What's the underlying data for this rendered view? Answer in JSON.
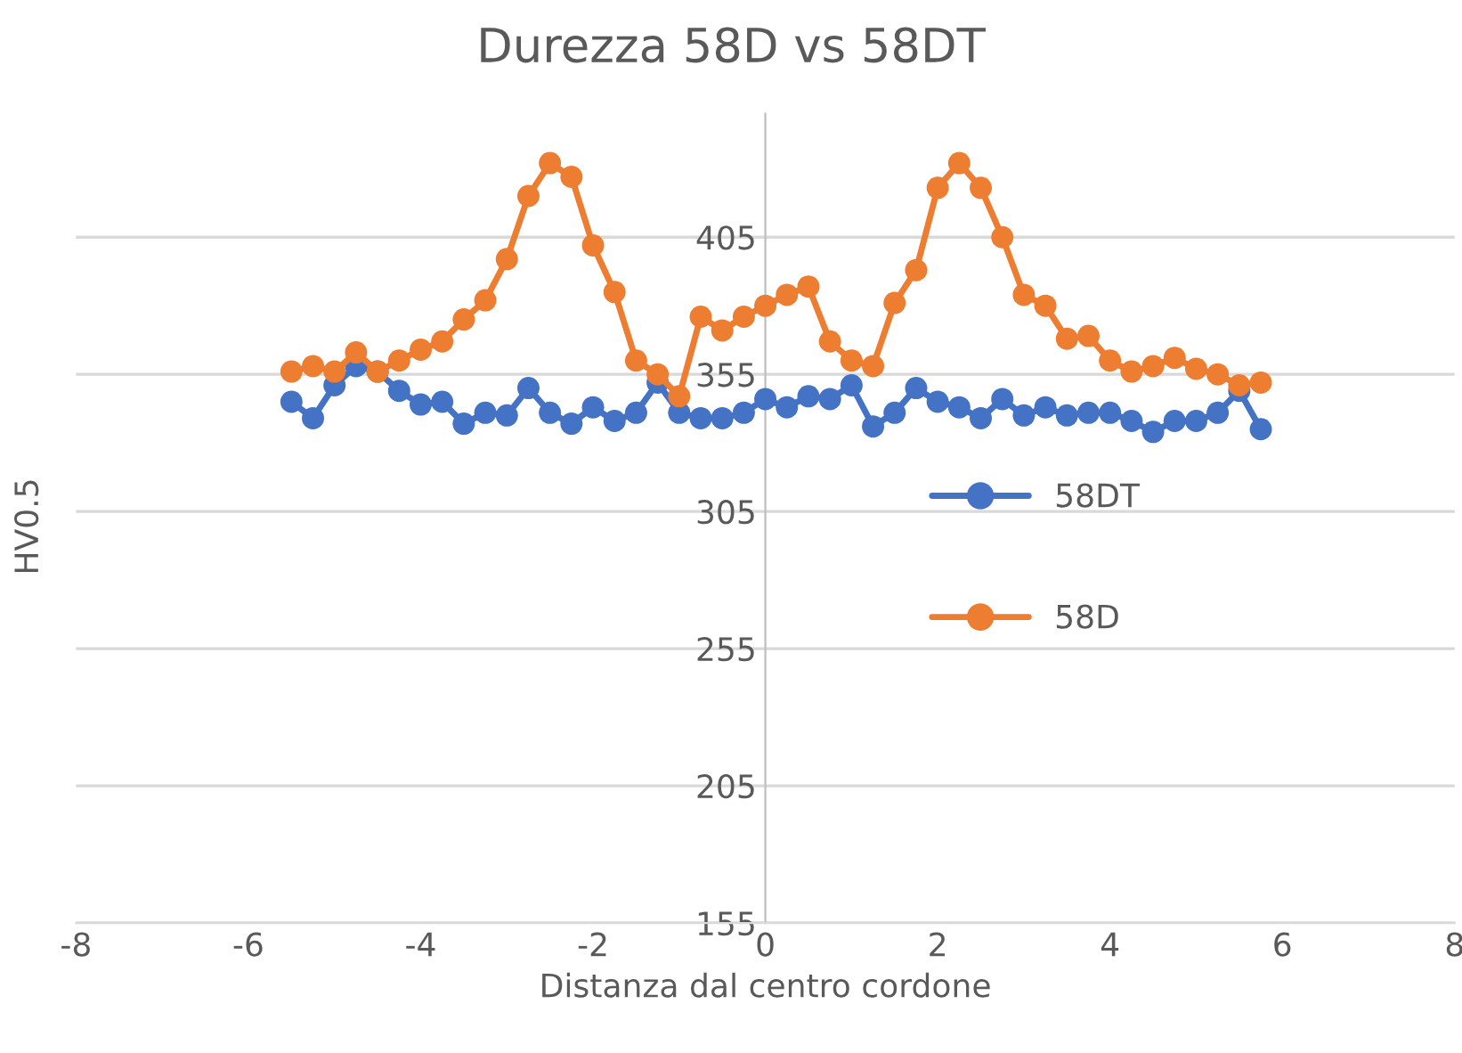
{
  "chart_data": {
    "type": "line",
    "title": "Durezza 58D vs 58DT",
    "xlabel": "Distanza dal centro cordone",
    "ylabel": "HV0.5",
    "xlim": [
      -8,
      8
    ],
    "xticks": [
      -8,
      -6,
      -4,
      -2,
      0,
      2,
      4,
      6,
      8
    ],
    "ylim": [
      155,
      450
    ],
    "yticks": [
      155,
      205,
      255,
      305,
      355,
      405
    ],
    "grid": "y",
    "legend": "right",
    "marker": "circle",
    "line_style": "solid",
    "x": [
      -5.5,
      -5.25,
      -5.0,
      -4.75,
      -4.5,
      -4.25,
      -4.0,
      -3.75,
      -3.5,
      -3.25,
      -3.0,
      -2.75,
      -2.5,
      -2.25,
      -2.0,
      -1.75,
      -1.5,
      -1.25,
      -1.0,
      -0.75,
      -0.5,
      -0.25,
      0,
      0.25,
      0.5,
      0.75,
      1.0,
      1.25,
      1.5,
      1.75,
      2.0,
      2.25,
      2.5,
      2.75,
      3.0,
      3.25,
      3.5,
      3.75,
      4.0,
      4.25,
      4.5,
      4.75,
      5.0,
      5.25,
      5.5,
      5.75
    ],
    "series": [
      {
        "name": "58DT",
        "color": "#4472c4",
        "values": [
          345,
          339,
          351,
          358,
          356,
          349,
          344,
          345,
          337,
          341,
          340,
          350,
          341,
          337,
          343,
          338,
          341,
          352,
          341,
          339,
          339,
          341,
          346,
          343,
          347,
          346,
          351,
          336,
          341,
          350,
          345,
          343,
          339,
          346,
          340,
          343,
          340,
          341,
          341,
          338,
          334,
          338,
          338,
          341,
          349,
          335
        ]
      },
      {
        "name": "58D",
        "color": "#ed7d31",
        "values": [
          356,
          358,
          356,
          363,
          356,
          360,
          364,
          367,
          375,
          382,
          397,
          420,
          432,
          427,
          402,
          385,
          360,
          355,
          347,
          376,
          371,
          376,
          380,
          384,
          387,
          367,
          360,
          358,
          381,
          393,
          423,
          432,
          423,
          405,
          384,
          380,
          368,
          369,
          360,
          356,
          358,
          361,
          357,
          355,
          351,
          352
        ]
      }
    ]
  }
}
